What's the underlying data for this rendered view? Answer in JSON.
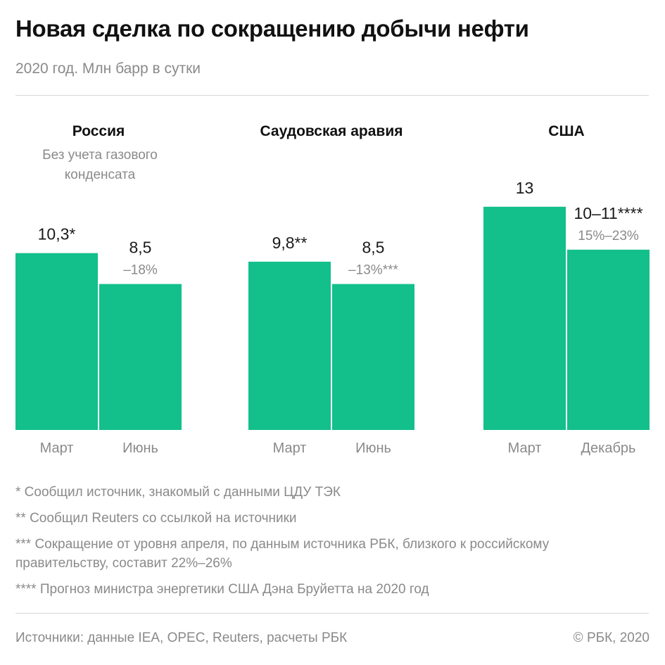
{
  "header": {
    "title": "Новая сделка по сокращению добычи нефти",
    "subtitle": "2020 год. Млн барр в сутки"
  },
  "chart_data": {
    "type": "bar",
    "unit": "Млн барр в сутки",
    "bar_color": "#13bf8b",
    "groups": [
      {
        "name": "Россия",
        "note": "Без учета газового конденсата",
        "bars": [
          {
            "category": "Март",
            "value": 10.3,
            "label": "10,3*",
            "sublabel": ""
          },
          {
            "category": "Июнь",
            "value": 8.5,
            "label": "8,5",
            "sublabel": "–18%"
          }
        ]
      },
      {
        "name": "Саудовская аравия",
        "note": "",
        "bars": [
          {
            "category": "Март",
            "value": 9.8,
            "label": "9,8**",
            "sublabel": ""
          },
          {
            "category": "Июнь",
            "value": 8.5,
            "label": "8,5",
            "sublabel": "–13%***"
          }
        ]
      },
      {
        "name": "США",
        "note": "",
        "bars": [
          {
            "category": "Март",
            "value": 13,
            "label": "13",
            "sublabel": ""
          },
          {
            "category": "Декабрь",
            "value": 10.5,
            "label": "10–11****",
            "sublabel": "15%–23%"
          }
        ]
      }
    ]
  },
  "footnotes": [
    "* Сообщил источник, знакомый с данными ЦДУ ТЭК",
    "** Сообщил Reuters со ссылкой на источники",
    "*** Сокращение от уровня апреля, по данным источника РБК, близкого к российскому правительству, составит 22%–26%",
    "**** Прогноз министра энергетики США Дэна Бруйетта на 2020 год"
  ],
  "footer": {
    "sources": "Источники: данные IEA, OPEC, Reuters, расчеты РБК",
    "copyright": "© РБК, 2020"
  }
}
